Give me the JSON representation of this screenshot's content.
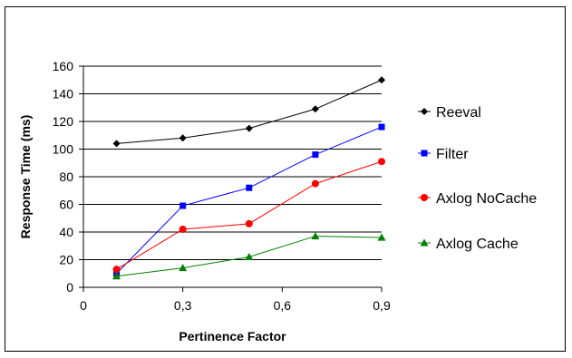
{
  "chart_data": {
    "type": "line",
    "xlabel": "Pertinence Factor",
    "ylabel": "Response Time (ms)",
    "xlim": [
      0,
      0.9
    ],
    "ylim": [
      0,
      160
    ],
    "x_ticks": [
      "0",
      "0,3",
      "0,6",
      "0,9"
    ],
    "y_ticks": [
      "0",
      "20",
      "40",
      "60",
      "80",
      "100",
      "120",
      "140",
      "160"
    ],
    "grid": "horizontal",
    "legend_position": "right",
    "series": [
      {
        "name": "Reeval",
        "color": "#000000",
        "marker": "diamond",
        "x": [
          0.1,
          0.3,
          0.5,
          0.7,
          0.9
        ],
        "values": [
          104,
          108,
          115,
          129,
          150
        ]
      },
      {
        "name": "Filter",
        "color": "#0000ff",
        "marker": "square",
        "x": [
          0.1,
          0.3,
          0.5,
          0.7,
          0.9
        ],
        "values": [
          10,
          59,
          72,
          96,
          116
        ]
      },
      {
        "name": "Axlog NoCache",
        "color": "#ff0000",
        "marker": "circle",
        "x": [
          0.1,
          0.3,
          0.5,
          0.7,
          0.9
        ],
        "values": [
          13,
          42,
          46,
          75,
          91
        ]
      },
      {
        "name": "Axlog Cache",
        "color": "#008000",
        "marker": "triangle",
        "x": [
          0.1,
          0.3,
          0.5,
          0.7,
          0.9
        ],
        "values": [
          8,
          14,
          22,
          37,
          36
        ]
      }
    ]
  }
}
